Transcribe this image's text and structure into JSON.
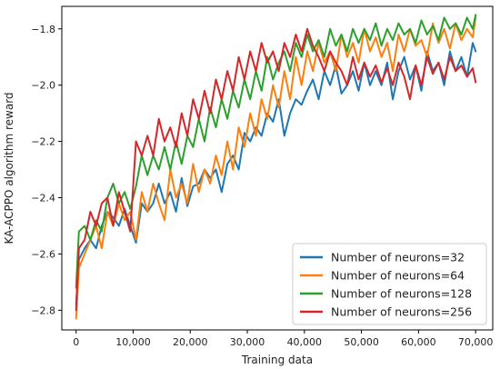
{
  "chart_data": {
    "type": "line",
    "xlabel": "Training data",
    "ylabel": "KA-ACPPO algorithm reward",
    "xlim": [
      -2500,
      73000
    ],
    "ylim": [
      -2.87,
      -1.72
    ],
    "x_ticks": [
      0,
      10000,
      20000,
      30000,
      40000,
      50000,
      60000,
      70000
    ],
    "x_tick_labels": [
      "0",
      "10,000",
      "20,000",
      "30,000",
      "40,000",
      "50,000",
      "60,000",
      "70,000"
    ],
    "y_ticks": [
      -2.8,
      -2.6,
      -2.4,
      -2.2,
      -2.0,
      -1.8
    ],
    "y_tick_labels": [
      "−2.8",
      "−2.6",
      "−2.4",
      "−2.2",
      "−2.0",
      "−1.8"
    ],
    "grid": false,
    "legend_position": "lower-right",
    "series": [
      {
        "name": "Number of neurons=32",
        "color": "#1f77b4",
        "x": [
          0,
          500,
          1500,
          2500,
          3500,
          4500,
          5500,
          6500,
          7500,
          8500,
          9500,
          10500,
          11500,
          12500,
          13500,
          14500,
          15500,
          16500,
          17500,
          18500,
          19500,
          20500,
          21500,
          22500,
          23500,
          24500,
          25500,
          26500,
          27500,
          28500,
          29500,
          30500,
          31500,
          32500,
          33500,
          34500,
          35500,
          36500,
          37500,
          38500,
          39500,
          40500,
          41500,
          42500,
          43500,
          44500,
          45500,
          46500,
          47500,
          48500,
          49500,
          50500,
          51500,
          52500,
          53500,
          54500,
          55500,
          56500,
          57500,
          58500,
          59500,
          60500,
          61500,
          62500,
          63500,
          64500,
          65500,
          66500,
          67500,
          68500,
          69500,
          70000
        ],
        "y": [
          -2.78,
          -2.62,
          -2.58,
          -2.55,
          -2.58,
          -2.5,
          -2.45,
          -2.47,
          -2.5,
          -2.44,
          -2.5,
          -2.56,
          -2.42,
          -2.45,
          -2.42,
          -2.35,
          -2.42,
          -2.38,
          -2.45,
          -2.33,
          -2.43,
          -2.36,
          -2.35,
          -2.3,
          -2.33,
          -2.3,
          -2.38,
          -2.28,
          -2.25,
          -2.3,
          -2.17,
          -2.2,
          -2.15,
          -2.18,
          -2.1,
          -2.13,
          -2.05,
          -2.18,
          -2.1,
          -2.05,
          -2.07,
          -2.02,
          -1.98,
          -2.05,
          -1.95,
          -2.0,
          -1.93,
          -2.03,
          -2.0,
          -1.95,
          -2.02,
          -1.92,
          -2.0,
          -1.95,
          -2.0,
          -1.92,
          -2.05,
          -1.95,
          -1.9,
          -1.98,
          -1.93,
          -2.02,
          -1.88,
          -1.95,
          -1.92,
          -2.0,
          -1.88,
          -1.95,
          -1.9,
          -1.97,
          -1.85,
          -1.88
        ]
      },
      {
        "name": "Number of neurons=64",
        "color": "#ff7f0e",
        "x": [
          0,
          500,
          1500,
          2500,
          3500,
          4500,
          5500,
          6500,
          7500,
          8500,
          9500,
          10500,
          11500,
          12500,
          13500,
          14500,
          15500,
          16500,
          17500,
          18500,
          19500,
          20500,
          21500,
          22500,
          23500,
          24500,
          25500,
          26500,
          27500,
          28500,
          29500,
          30500,
          31500,
          32500,
          33500,
          34500,
          35500,
          36500,
          37500,
          38500,
          39500,
          40500,
          41500,
          42500,
          43500,
          44500,
          45500,
          46500,
          47500,
          48500,
          49500,
          50500,
          51500,
          52500,
          53500,
          54500,
          55500,
          56500,
          57500,
          58500,
          59500,
          60500,
          61500,
          62500,
          63500,
          64500,
          65500,
          66500,
          67500,
          68500,
          69500,
          70000
        ],
        "y": [
          -2.83,
          -2.65,
          -2.6,
          -2.55,
          -2.5,
          -2.58,
          -2.45,
          -2.5,
          -2.42,
          -2.48,
          -2.45,
          -2.55,
          -2.38,
          -2.45,
          -2.35,
          -2.42,
          -2.48,
          -2.3,
          -2.4,
          -2.35,
          -2.42,
          -2.28,
          -2.38,
          -2.3,
          -2.35,
          -2.25,
          -2.32,
          -2.2,
          -2.3,
          -2.15,
          -2.22,
          -2.1,
          -2.18,
          -2.05,
          -2.12,
          -2.0,
          -2.08,
          -1.95,
          -2.05,
          -1.9,
          -2.0,
          -1.88,
          -1.95,
          -1.85,
          -1.92,
          -1.88,
          -1.95,
          -1.82,
          -1.9,
          -1.85,
          -1.92,
          -1.8,
          -1.88,
          -1.83,
          -1.9,
          -1.85,
          -1.95,
          -1.82,
          -1.88,
          -1.8,
          -1.86,
          -1.84,
          -1.9,
          -1.78,
          -1.85,
          -1.8,
          -1.87,
          -1.78,
          -1.84,
          -1.8,
          -1.83,
          -1.76
        ]
      },
      {
        "name": "Number of neurons=128",
        "color": "#2ca02c",
        "x": [
          0,
          500,
          1500,
          2500,
          3500,
          4500,
          5500,
          6500,
          7500,
          8500,
          9500,
          10500,
          11500,
          12500,
          13500,
          14500,
          15500,
          16500,
          17500,
          18500,
          19500,
          20500,
          21500,
          22500,
          23500,
          24500,
          25500,
          26500,
          27500,
          28500,
          29500,
          30500,
          31500,
          32500,
          33500,
          34500,
          35500,
          36500,
          37500,
          38500,
          39500,
          40500,
          41500,
          42500,
          43500,
          44500,
          45500,
          46500,
          47500,
          48500,
          49500,
          50500,
          51500,
          52500,
          53500,
          54500,
          55500,
          56500,
          57500,
          58500,
          59500,
          60500,
          61500,
          62500,
          63500,
          64500,
          65500,
          66500,
          67500,
          68500,
          69500,
          70000
        ],
        "y": [
          -2.72,
          -2.52,
          -2.5,
          -2.55,
          -2.48,
          -2.52,
          -2.4,
          -2.35,
          -2.42,
          -2.38,
          -2.44,
          -2.36,
          -2.25,
          -2.32,
          -2.25,
          -2.3,
          -2.22,
          -2.3,
          -2.2,
          -2.28,
          -2.18,
          -2.22,
          -2.12,
          -2.2,
          -2.08,
          -2.15,
          -2.05,
          -2.12,
          -2.02,
          -2.08,
          -1.98,
          -2.05,
          -1.95,
          -2.02,
          -1.9,
          -1.98,
          -1.92,
          -1.88,
          -1.95,
          -1.85,
          -1.9,
          -1.82,
          -1.88,
          -1.84,
          -1.9,
          -1.8,
          -1.86,
          -1.82,
          -1.88,
          -1.8,
          -1.85,
          -1.8,
          -1.84,
          -1.78,
          -1.86,
          -1.8,
          -1.84,
          -1.78,
          -1.82,
          -1.8,
          -1.85,
          -1.77,
          -1.82,
          -1.79,
          -1.84,
          -1.76,
          -1.8,
          -1.78,
          -1.82,
          -1.76,
          -1.8,
          -1.75
        ]
      },
      {
        "name": "Number of neurons=256",
        "color": "#d62728",
        "x": [
          0,
          500,
          1500,
          2500,
          3500,
          4500,
          5500,
          6500,
          7500,
          8500,
          9500,
          10500,
          11500,
          12500,
          13500,
          14500,
          15500,
          16500,
          17500,
          18500,
          19500,
          20500,
          21500,
          22500,
          23500,
          24500,
          25500,
          26500,
          27500,
          28500,
          29500,
          30500,
          31500,
          32500,
          33500,
          34500,
          35500,
          36500,
          37500,
          38500,
          39500,
          40500,
          41500,
          42500,
          43500,
          44500,
          45500,
          46500,
          47500,
          48500,
          49500,
          50500,
          51500,
          52500,
          53500,
          54500,
          55500,
          56500,
          57500,
          58500,
          59500,
          60500,
          61500,
          62500,
          63500,
          64500,
          65500,
          66500,
          67500,
          68500,
          69500,
          70000
        ],
        "y": [
          -2.8,
          -2.58,
          -2.55,
          -2.45,
          -2.5,
          -2.42,
          -2.4,
          -2.5,
          -2.38,
          -2.45,
          -2.52,
          -2.2,
          -2.25,
          -2.18,
          -2.25,
          -2.12,
          -2.2,
          -2.15,
          -2.22,
          -2.1,
          -2.18,
          -2.05,
          -2.12,
          -2.02,
          -2.1,
          -1.98,
          -2.05,
          -1.95,
          -2.02,
          -1.9,
          -1.98,
          -1.88,
          -1.95,
          -1.85,
          -1.92,
          -1.88,
          -1.95,
          -1.85,
          -1.9,
          -1.82,
          -1.88,
          -1.8,
          -1.86,
          -1.9,
          -1.95,
          -1.88,
          -1.92,
          -1.95,
          -2.0,
          -1.9,
          -1.98,
          -1.92,
          -1.97,
          -1.93,
          -1.99,
          -1.94,
          -2.0,
          -1.92,
          -1.97,
          -2.05,
          -1.93,
          -2.0,
          -1.9,
          -1.96,
          -1.92,
          -1.98,
          -1.9,
          -1.95,
          -1.93,
          -1.97,
          -1.94,
          -1.99
        ]
      }
    ]
  }
}
